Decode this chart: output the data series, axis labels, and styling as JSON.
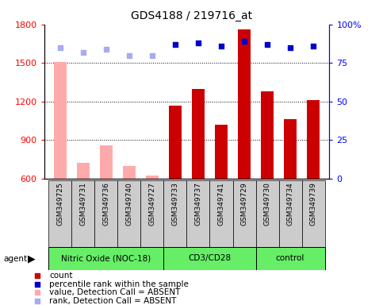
{
  "title": "GDS4188 / 219716_at",
  "samples": [
    "GSM349725",
    "GSM349731",
    "GSM349736",
    "GSM349740",
    "GSM349727",
    "GSM349733",
    "GSM349737",
    "GSM349741",
    "GSM349729",
    "GSM349730",
    "GSM349734",
    "GSM349739"
  ],
  "counts": [
    1510,
    720,
    860,
    695,
    620,
    1170,
    1300,
    1020,
    1760,
    1280,
    1060,
    1210
  ],
  "absent": [
    true,
    true,
    true,
    true,
    true,
    false,
    false,
    false,
    false,
    false,
    false,
    false
  ],
  "percentile_ranks": [
    85,
    82,
    84,
    80,
    80,
    87,
    88,
    86,
    89,
    87,
    85,
    86
  ],
  "group_spans": [
    [
      0,
      5,
      "Nitric Oxide (NOC-18)"
    ],
    [
      5,
      9,
      "CD3/CD28"
    ],
    [
      9,
      12,
      "control"
    ]
  ],
  "ylim_left": [
    600,
    1800
  ],
  "ylim_right": [
    0,
    100
  ],
  "yticks_left": [
    600,
    900,
    1200,
    1500,
    1800
  ],
  "yticks_right": [
    0,
    25,
    50,
    75,
    100
  ],
  "bar_color_present": "#cc0000",
  "bar_color_absent": "#ffaaaa",
  "dot_color_present": "#0000cc",
  "dot_color_absent": "#aaaaee",
  "bg_color": "#ffffff",
  "group_color": "#66ee66",
  "sample_box_color": "#cccccc",
  "bar_width": 0.55,
  "legend_items": [
    [
      "#cc0000",
      "count"
    ],
    [
      "#0000cc",
      "percentile rank within the sample"
    ],
    [
      "#ffaaaa",
      "value, Detection Call = ABSENT"
    ],
    [
      "#aaaaee",
      "rank, Detection Call = ABSENT"
    ]
  ]
}
